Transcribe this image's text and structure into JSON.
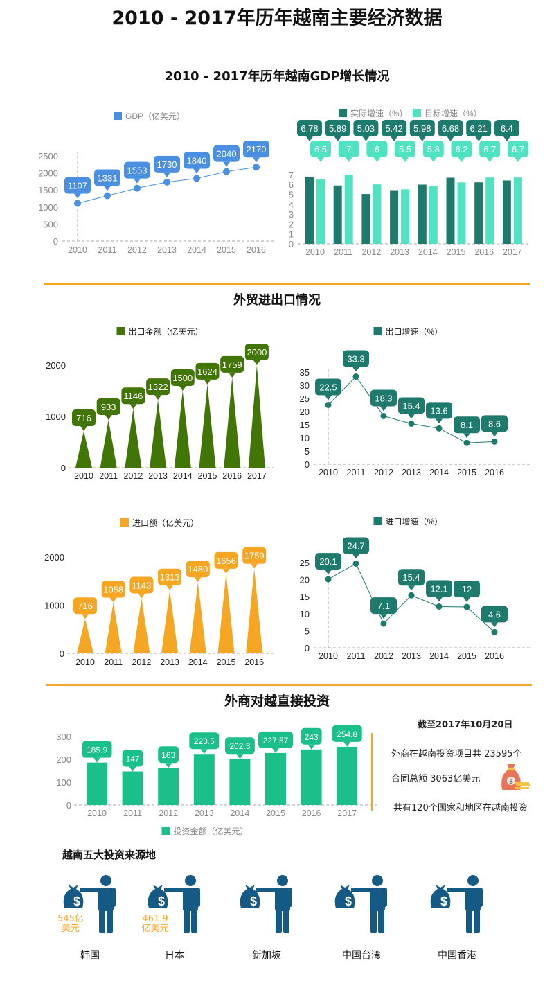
{
  "title": "2010 - 2017年历年越南主要经济数据",
  "sections": {
    "gdp_title": "2010 - 2017年历年越南GDP增长情况",
    "trade_title": "外贸进出口情况",
    "fdi_title": "外商对越直接投资",
    "sources_title": "越南五大投资来源地"
  },
  "colors": {
    "gdp": "#4a8fe0",
    "actual": "#1f7a6e",
    "target": "#50e3c2",
    "export": "#417505",
    "import": "#f5a623",
    "invest": "#1abf8a",
    "icon": "#155a85",
    "rule": "#f5a623"
  },
  "chart_data": [
    {
      "id": "gdp",
      "type": "line",
      "legend": [
        "GDP（亿美元）"
      ],
      "categories": [
        "2010",
        "2011",
        "2012",
        "2013",
        "2014",
        "2015",
        "2016"
      ],
      "series": [
        {
          "name": "GDP（亿美元）",
          "values": [
            1107,
            1331,
            1553,
            1730,
            1840,
            2040,
            2170
          ]
        }
      ],
      "ylim": [
        0,
        2500
      ],
      "yticks": [
        0,
        500,
        1000,
        1500,
        2000,
        2500
      ]
    },
    {
      "id": "growth",
      "type": "bar",
      "legend": [
        "实际增速（%）",
        "目标增速（%）"
      ],
      "categories": [
        "2010",
        "2011",
        "2012",
        "2013",
        "2014",
        "2015",
        "2016",
        "2017"
      ],
      "series": [
        {
          "name": "实际增速（%）",
          "values": [
            6.78,
            5.89,
            5.03,
            5.42,
            5.98,
            6.68,
            6.21,
            6.4
          ]
        },
        {
          "name": "目标增速（%）",
          "values": [
            6.5,
            7,
            6,
            5.5,
            5.8,
            6.2,
            6.7,
            6.7
          ]
        }
      ],
      "ylim": [
        0,
        7.7
      ],
      "yticks": [
        0,
        1,
        2,
        3,
        4,
        5,
        6,
        7
      ]
    },
    {
      "id": "export",
      "type": "bar",
      "legend": [
        "出口金额（亿美元）"
      ],
      "categories": [
        "2010",
        "2011",
        "2012",
        "2013",
        "2014",
        "2015",
        "2016",
        "2017"
      ],
      "series": [
        {
          "name": "出口金额（亿美元）",
          "values": [
            716,
            933,
            1146,
            1322,
            1500,
            1624,
            1759,
            2000
          ]
        }
      ],
      "ylim": [
        0,
        2000
      ],
      "yticks": [
        0,
        1000,
        2000
      ]
    },
    {
      "id": "export_growth",
      "type": "line",
      "legend": [
        "出口增速（%）"
      ],
      "categories": [
        "2010",
        "2011",
        "2012",
        "2013",
        "2014",
        "2015",
        "2016"
      ],
      "series": [
        {
          "name": "出口增速（%）",
          "values": [
            22.5,
            33.3,
            18.3,
            15.4,
            13.6,
            8.1,
            8.6
          ]
        }
      ],
      "ylim": [
        0,
        35
      ],
      "yticks": [
        0,
        5,
        10,
        15,
        20,
        25,
        30,
        35
      ]
    },
    {
      "id": "import",
      "type": "bar",
      "legend": [
        "进口额（亿美元）"
      ],
      "categories": [
        "2010",
        "2011",
        "2012",
        "2013",
        "2014",
        "2015",
        "2016"
      ],
      "series": [
        {
          "name": "进口额（亿美元）",
          "values": [
            716,
            1058,
            1143,
            1313,
            1480,
            1656,
            1759
          ]
        }
      ],
      "ylim": [
        0,
        2000
      ],
      "yticks": [
        0,
        1000,
        2000
      ]
    },
    {
      "id": "import_growth",
      "type": "line",
      "legend": [
        "进口增速（%）"
      ],
      "categories": [
        "2010",
        "2011",
        "2012",
        "2013",
        "2014",
        "2015",
        "2016"
      ],
      "series": [
        {
          "name": "进口增速（%）",
          "values": [
            20.1,
            24.7,
            7.1,
            15.4,
            12.1,
            12,
            4.6
          ]
        }
      ],
      "ylim": [
        0,
        25
      ],
      "yticks": [
        0,
        5,
        10,
        15,
        20,
        25
      ]
    },
    {
      "id": "invest",
      "type": "bar",
      "legend": [
        "投资金额（亿美元）"
      ],
      "categories": [
        "2010",
        "2011",
        "2012",
        "2013",
        "2014",
        "2015",
        "2016",
        "2017"
      ],
      "series": [
        {
          "name": "投资金额（亿美元）",
          "values": [
            185.9,
            147,
            163,
            223.5,
            202.3,
            227.57,
            243,
            254.8
          ]
        }
      ],
      "ylim": [
        0,
        300
      ],
      "yticks": [
        0,
        100,
        200,
        300
      ]
    }
  ],
  "fdi_info": {
    "date": "截至2017年10月20日",
    "projects": "外商在越南投资项目共 23595个",
    "contract": "合同总额 3063亿美元",
    "countries": "共有120个国家和地区在越南投资"
  },
  "sources": [
    {
      "name": "韩国",
      "amount_line1": "545亿",
      "amount_line2": "美元"
    },
    {
      "name": "日本",
      "amount_line1": "461.9",
      "amount_line2": "亿美元"
    },
    {
      "name": "新加坡"
    },
    {
      "name": "中国台湾"
    },
    {
      "name": "中国香港"
    }
  ]
}
